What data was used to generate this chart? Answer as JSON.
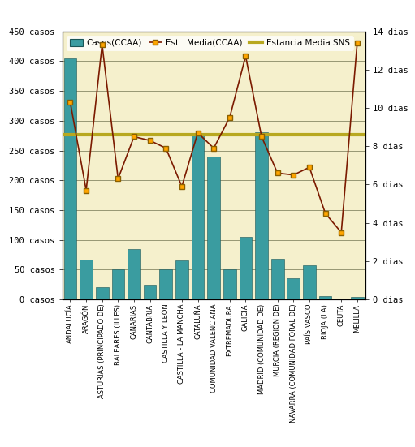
{
  "categories": [
    "ANDALUCÍA",
    "ARAGÓN",
    "ASTURIAS (PRINCIPADO DE)",
    "BALEARES (ILLES)",
    "CANARIAS",
    "CANTABRIA",
    "CASTILLA Y LEÓN",
    "CASTILLA - LA MANCHA",
    "CATALUÑA",
    "COMUNIDAD VALENCIANA",
    "EXTREMADURA",
    "GALICIA",
    "MADRID (COMUNIDAD DE)",
    "MURCIA (REGION DE)",
    "NAVARRA (COMUNIDAD FORAL DE)",
    "PAÍS VASCO",
    "RIOJA (LA)",
    "CEUTA",
    "MELILLA"
  ],
  "casos": [
    405,
    67,
    20,
    50,
    85,
    25,
    50,
    65,
    275,
    240,
    50,
    105,
    280,
    68,
    35,
    58,
    5,
    2,
    4
  ],
  "estancia_media": [
    10.3,
    5.7,
    13.3,
    6.3,
    8.5,
    8.3,
    7.9,
    5.9,
    8.7,
    7.9,
    9.5,
    12.7,
    8.5,
    6.6,
    6.5,
    6.9,
    4.5,
    3.5,
    13.4
  ],
  "estancia_sns": 8.6,
  "bar_color": "#3a9ca0",
  "line_color": "#7b1a00",
  "marker_color": "#ffa500",
  "marker_edge_color": "#8b6000",
  "sns_line_color": "#b8a820",
  "background_color": "#f5f0cc",
  "fig_background": "#ffffff",
  "grid_color": "#c8c8a0",
  "ylim_left": [
    0,
    450
  ],
  "ylim_right": [
    0,
    14
  ],
  "yticks_left": [
    0,
    50,
    100,
    150,
    200,
    250,
    300,
    350,
    400,
    450
  ],
  "yticks_right": [
    0,
    2,
    4,
    6,
    8,
    10,
    12,
    14
  ],
  "legend_labels": [
    "Casos(CCAA)",
    "Est.  Media(CCAA)",
    "Estancia Media SNS"
  ]
}
